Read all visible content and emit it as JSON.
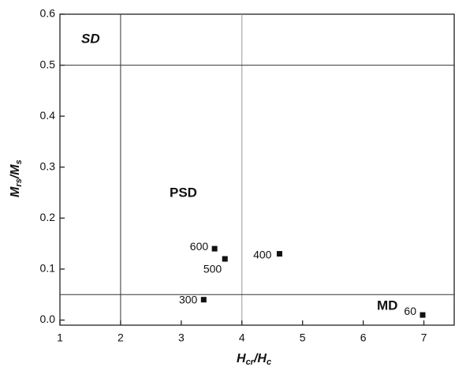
{
  "chart_data": {
    "type": "scatter",
    "x": [
      3.55,
      3.72,
      4.62,
      3.37,
      6.98
    ],
    "values": [
      0.14,
      0.12,
      0.13,
      0.04,
      0.01
    ],
    "point_labels": [
      "600",
      "500",
      "400",
      "300",
      "60"
    ],
    "color": "#111111",
    "xlim": [
      1,
      7.5
    ],
    "ylim": [
      -0.01,
      0.6
    ],
    "xticks": [
      1,
      2,
      3,
      4,
      5,
      6,
      7
    ],
    "yticks": [
      {
        "value": 0,
        "label": "0.0"
      },
      0.1,
      0.2,
      0.3,
      0.4,
      0.5,
      0.6
    ],
    "vlines": [
      2,
      4
    ],
    "hlines": [
      0.5,
      0.05
    ],
    "regions": [
      "SD",
      "PSD",
      "MD"
    ],
    "xlabel": [
      "H",
      "cr",
      "/H",
      "c"
    ],
    "ylabel": [
      "M",
      "rs",
      "/M",
      "s"
    ]
  }
}
